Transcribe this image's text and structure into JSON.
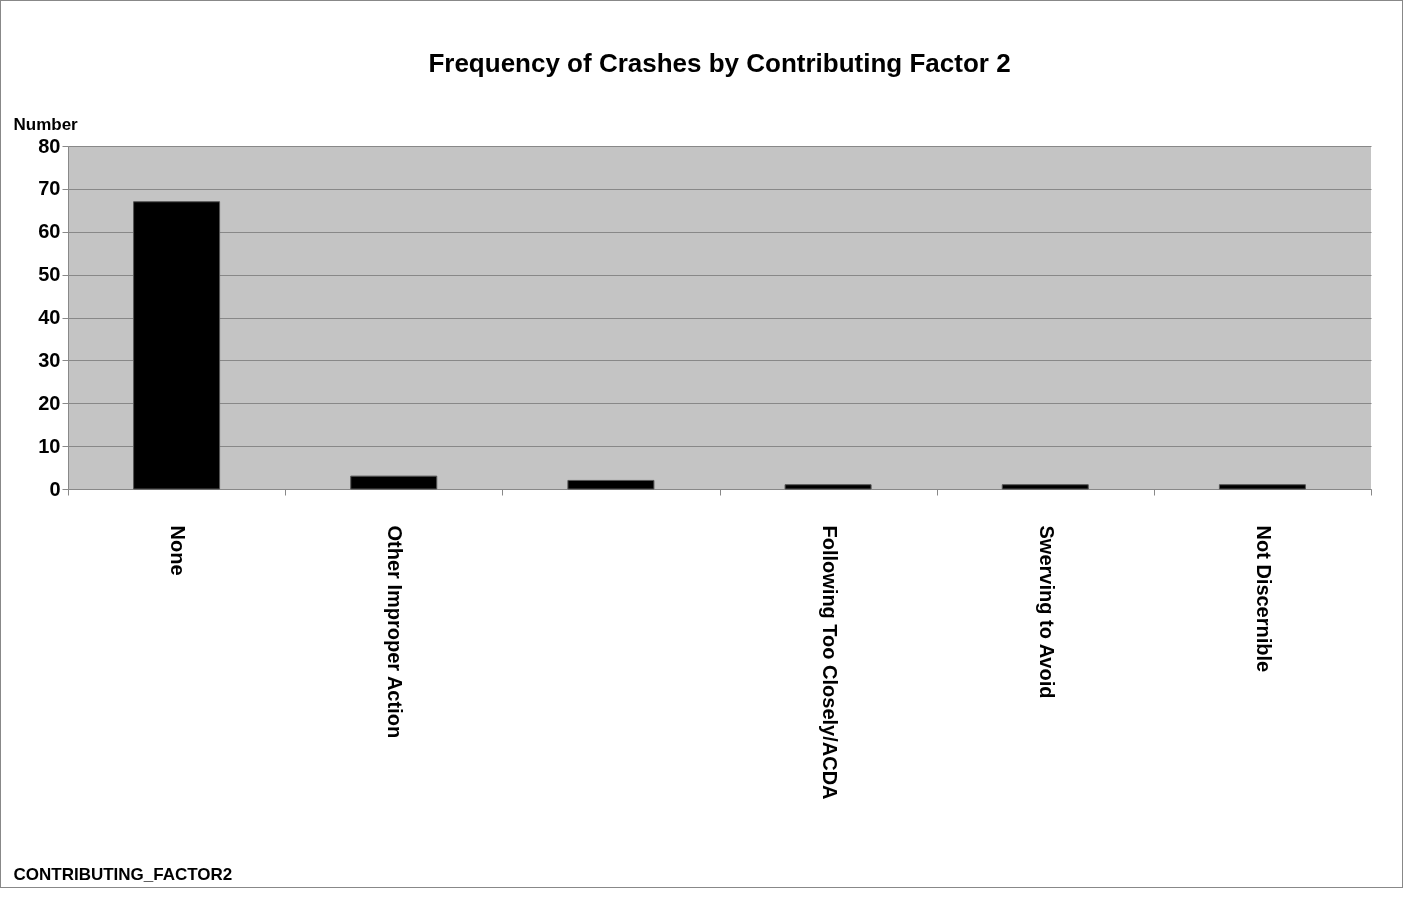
{
  "chart_data": {
    "type": "bar",
    "title": "Frequency of Crashes by Contributing Factor 2",
    "xlabel": "CONTRIBUTING_FACTOR2",
    "ylabel": "Number",
    "categories": [
      "None",
      "Other Improper Action",
      null,
      "Following Too Closely/ACDA",
      "Swerving to Avoid",
      "Not Discernible"
    ],
    "values": [
      67,
      3,
      2,
      1,
      1,
      1
    ],
    "color": "#000000",
    "ylim": [
      0,
      80
    ],
    "yticks": [
      0,
      10,
      20,
      30,
      40,
      50,
      60,
      70,
      80
    ],
    "grid": "y"
  }
}
